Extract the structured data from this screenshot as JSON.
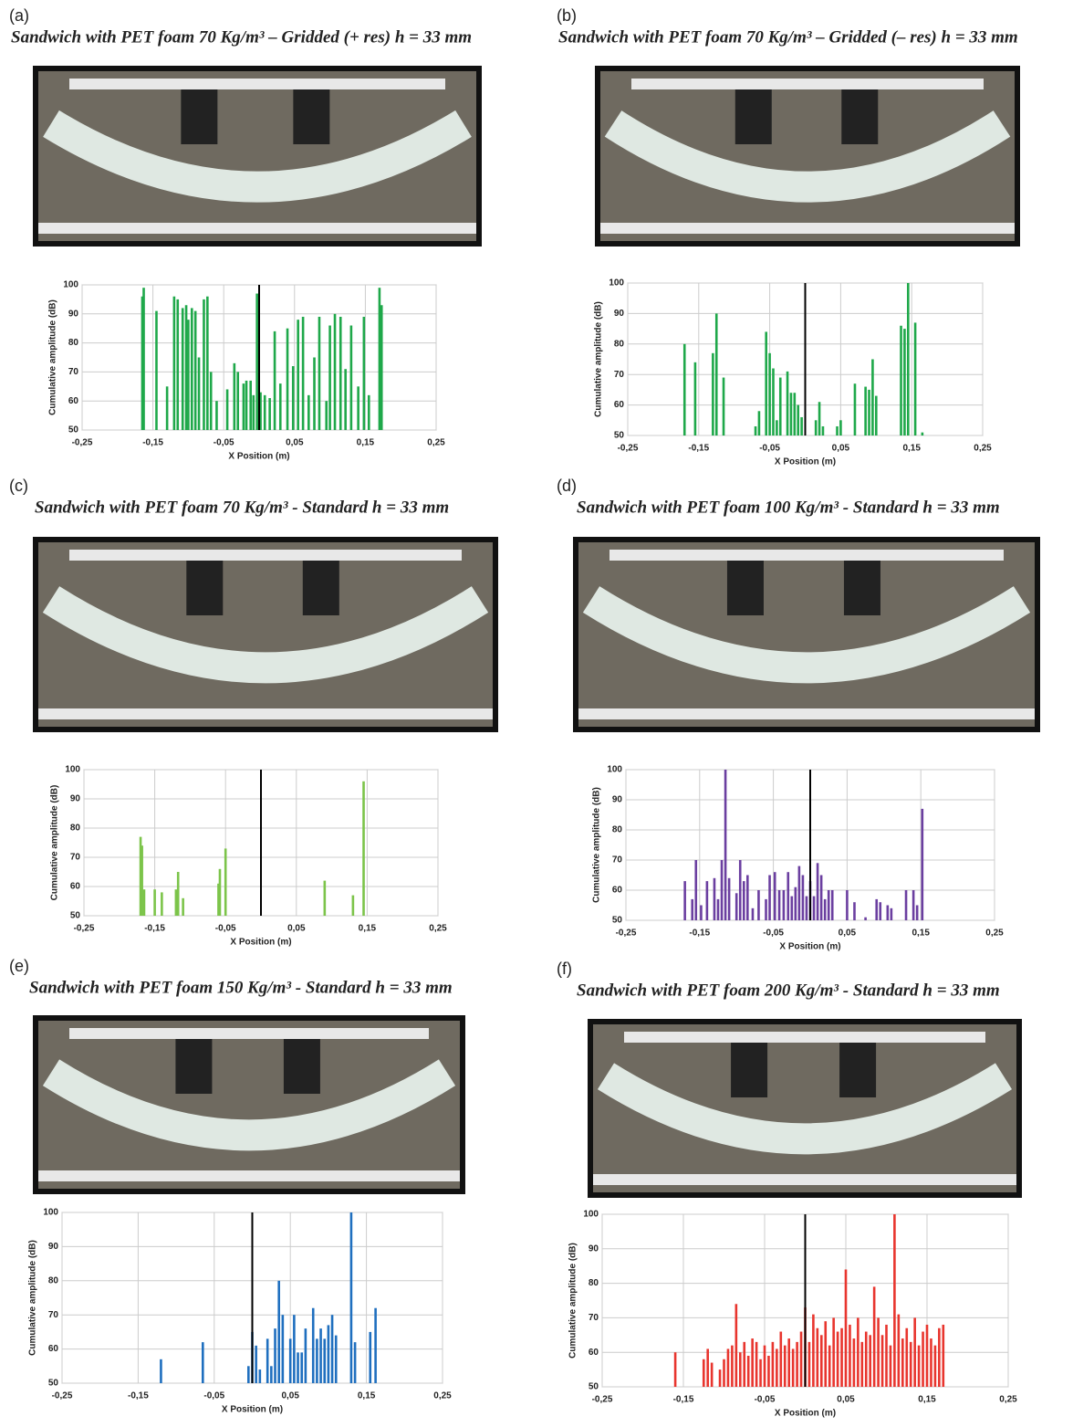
{
  "chart_data": [
    {
      "type": "bar",
      "panel": "(a)",
      "title": "Sandwich with PET foam 70 Kg/m³ – Gridded (+ res) h = 33 mm",
      "xlabel": "X Position (m)",
      "ylabel": "Cumulative amplitude (dB)",
      "color": "#1fa84a",
      "x": [
        -0.165,
        -0.163,
        -0.145,
        -0.13,
        -0.12,
        -0.115,
        -0.108,
        -0.103,
        -0.1,
        -0.095,
        -0.09,
        -0.085,
        -0.078,
        -0.073,
        -0.068,
        -0.06,
        -0.045,
        -0.035,
        -0.03,
        -0.022,
        -0.018,
        -0.012,
        -0.008,
        -0.003,
        0.002,
        0.008,
        0.015,
        0.022,
        0.03,
        0.04,
        0.048,
        0.055,
        0.062,
        0.07,
        0.078,
        0.085,
        0.095,
        0.1,
        0.107,
        0.115,
        0.122,
        0.13,
        0.14,
        0.148,
        0.155,
        0.17,
        0.173
      ],
      "values": [
        96,
        99,
        91,
        65,
        96,
        95,
        92,
        93,
        88,
        92,
        91,
        75,
        95,
        96,
        70,
        60,
        64,
        73,
        70,
        66,
        67,
        67,
        62,
        97,
        63,
        62,
        61,
        84,
        66,
        85,
        72,
        88,
        89,
        62,
        75,
        89,
        60,
        86,
        90,
        89,
        71,
        86,
        65,
        89,
        62,
        99,
        93
      ],
      "xlim": [
        -0.25,
        0.25
      ],
      "ylim": [
        50,
        100
      ],
      "xticks": [
        {
          "value": -0.25,
          "label": "-0,25"
        },
        {
          "value": -0.15,
          "label": "-0,15"
        },
        {
          "value": -0.05,
          "label": "-0,05"
        },
        {
          "value": 0.05,
          "label": "0,05"
        },
        {
          "value": 0.15,
          "label": "0,15"
        },
        {
          "value": 0.25,
          "label": "0,25"
        }
      ],
      "yticks": [
        50,
        60,
        70,
        80,
        90,
        100
      ],
      "grid": true,
      "vline": 0
    },
    {
      "type": "bar",
      "panel": "(b)",
      "title": "Sandwich with PET foam 70 Kg/m³ – Gridded (– res) h = 33 mm",
      "xlabel": "X Position (m)",
      "ylabel": "Cumulative amplitude (dB)",
      "color": "#1fa84a",
      "x": [
        -0.17,
        -0.155,
        -0.13,
        -0.125,
        -0.115,
        -0.07,
        -0.065,
        -0.055,
        -0.05,
        -0.045,
        -0.04,
        -0.035,
        -0.025,
        -0.02,
        -0.015,
        -0.01,
        -0.005,
        0.015,
        0.02,
        0.025,
        0.045,
        0.05,
        0.07,
        0.085,
        0.09,
        0.095,
        0.1,
        0.135,
        0.14,
        0.145,
        0.155,
        0.165
      ],
      "values": [
        80,
        74,
        77,
        90,
        69,
        53,
        58,
        84,
        77,
        72,
        55,
        69,
        71,
        64,
        64,
        60,
        56,
        55,
        61,
        53,
        53,
        55,
        67,
        66,
        65,
        75,
        63,
        86,
        85,
        100,
        87,
        51
      ],
      "xlim": [
        -0.25,
        0.25
      ],
      "ylim": [
        50,
        100
      ],
      "xticks": [
        {
          "value": -0.25,
          "label": "-0,25"
        },
        {
          "value": -0.15,
          "label": "-0,15"
        },
        {
          "value": -0.05,
          "label": "-0,05"
        },
        {
          "value": 0.05,
          "label": "0,05"
        },
        {
          "value": 0.15,
          "label": "0,15"
        },
        {
          "value": 0.25,
          "label": "0,25"
        }
      ],
      "yticks": [
        50,
        60,
        70,
        80,
        90,
        100
      ],
      "grid": true,
      "vline": 0
    },
    {
      "type": "bar",
      "panel": "(c)",
      "title": "Sandwich with PET foam 70 Kg/m³ - Standard h = 33 mm",
      "xlabel": "X Position (m)",
      "ylabel": "Cumulative amplitude (dB)",
      "color": "#7cc44a",
      "x": [
        -0.17,
        -0.168,
        -0.165,
        -0.15,
        -0.14,
        -0.12,
        -0.117,
        -0.11,
        -0.06,
        -0.058,
        -0.05,
        0.09,
        0.13,
        0.145
      ],
      "values": [
        77,
        74,
        59,
        59,
        58,
        59,
        65,
        56,
        61,
        66,
        73,
        62,
        57,
        96
      ],
      "xlim": [
        -0.25,
        0.25
      ],
      "ylim": [
        50,
        100
      ],
      "xticks": [
        {
          "value": -0.25,
          "label": "-0,25"
        },
        {
          "value": -0.15,
          "label": "-0,15"
        },
        {
          "value": -0.05,
          "label": "-0,05"
        },
        {
          "value": 0.05,
          "label": "0,05"
        },
        {
          "value": 0.15,
          "label": "0,15"
        },
        {
          "value": 0.25,
          "label": "0,25"
        }
      ],
      "yticks": [
        50,
        60,
        70,
        80,
        90,
        100
      ],
      "grid": true,
      "vline": 0
    },
    {
      "type": "bar",
      "panel": "(d)",
      "title": "Sandwich with PET foam 100 Kg/m³ - Standard h = 33 mm",
      "xlabel": "X Position (m)",
      "ylabel": "Cumulative amplitude (dB)",
      "color": "#6b3fa0",
      "x": [
        -0.17,
        -0.16,
        -0.155,
        -0.148,
        -0.14,
        -0.13,
        -0.125,
        -0.12,
        -0.115,
        -0.11,
        -0.1,
        -0.095,
        -0.09,
        -0.085,
        -0.078,
        -0.07,
        -0.06,
        -0.055,
        -0.048,
        -0.042,
        -0.036,
        -0.03,
        -0.025,
        -0.02,
        -0.015,
        -0.01,
        -0.005,
        0,
        0.005,
        0.01,
        0.015,
        0.02,
        0.025,
        0.03,
        0.05,
        0.06,
        0.075,
        0.09,
        0.095,
        0.105,
        0.11,
        0.13,
        0.14,
        0.145,
        0.152
      ],
      "values": [
        63,
        57,
        70,
        55,
        63,
        64,
        57,
        70,
        100,
        64,
        59,
        70,
        63,
        65,
        54,
        60,
        57,
        65,
        66,
        60,
        60,
        66,
        58,
        61,
        68,
        65,
        58,
        63,
        58,
        69,
        65,
        57,
        60,
        60,
        60,
        56,
        51,
        57,
        56,
        55,
        54,
        60,
        60,
        55,
        87
      ],
      "xlim": [
        -0.25,
        0.25
      ],
      "ylim": [
        50,
        100
      ],
      "xticks": [
        {
          "value": -0.25,
          "label": "-0,25"
        },
        {
          "value": -0.15,
          "label": "-0,15"
        },
        {
          "value": -0.05,
          "label": "-0,05"
        },
        {
          "value": 0.05,
          "label": "0,05"
        },
        {
          "value": 0.15,
          "label": "0,15"
        },
        {
          "value": 0.25,
          "label": "0,25"
        }
      ],
      "yticks": [
        50,
        60,
        70,
        80,
        90,
        100
      ],
      "grid": true,
      "vline": 0
    },
    {
      "type": "bar",
      "panel": "(e)",
      "title": "Sandwich with PET foam 150 Kg/m³ - Standard h = 33 mm",
      "xlabel": "X Position (m)",
      "ylabel": "Cumulative amplitude (dB)",
      "color": "#1f6fbf",
      "x": [
        -0.12,
        -0.065,
        -0.005,
        0,
        0.005,
        0.01,
        0.02,
        0.025,
        0.03,
        0.035,
        0.04,
        0.05,
        0.055,
        0.06,
        0.065,
        0.07,
        0.08,
        0.085,
        0.09,
        0.095,
        0.1,
        0.105,
        0.11,
        0.13,
        0.135,
        0.155,
        0.162
      ],
      "values": [
        57,
        62,
        55,
        65,
        61,
        54,
        63,
        55,
        66,
        80,
        70,
        63,
        70,
        59,
        59,
        66,
        72,
        63,
        66,
        63,
        67,
        70,
        64,
        100,
        62,
        65,
        72
      ],
      "xlim": [
        -0.25,
        0.25
      ],
      "ylim": [
        50,
        100
      ],
      "xticks": [
        {
          "value": -0.25,
          "label": "-0,25"
        },
        {
          "value": -0.15,
          "label": "-0,15"
        },
        {
          "value": -0.05,
          "label": "-0,05"
        },
        {
          "value": 0.05,
          "label": "0,05"
        },
        {
          "value": 0.15,
          "label": "0,15"
        },
        {
          "value": 0.25,
          "label": "0,25"
        }
      ],
      "yticks": [
        50,
        60,
        70,
        80,
        90,
        100
      ],
      "grid": true,
      "vline": 0
    },
    {
      "type": "bar",
      "panel": "(f)",
      "title": "Sandwich with PET foam 200 Kg/m³ - Standard h = 33 mm",
      "xlabel": "X Position (m)",
      "ylabel": "Cumulative amplitude (dB)",
      "color": "#e8352e",
      "x": [
        -0.16,
        -0.125,
        -0.12,
        -0.115,
        -0.105,
        -0.1,
        -0.095,
        -0.09,
        -0.085,
        -0.08,
        -0.075,
        -0.07,
        -0.065,
        -0.06,
        -0.055,
        -0.05,
        -0.045,
        -0.04,
        -0.035,
        -0.03,
        -0.025,
        -0.02,
        -0.015,
        -0.01,
        -0.005,
        0,
        0.005,
        0.01,
        0.015,
        0.02,
        0.025,
        0.03,
        0.035,
        0.04,
        0.045,
        0.05,
        0.055,
        0.06,
        0.065,
        0.07,
        0.075,
        0.08,
        0.085,
        0.09,
        0.095,
        0.1,
        0.105,
        0.11,
        0.115,
        0.12,
        0.125,
        0.13,
        0.135,
        0.14,
        0.145,
        0.15,
        0.155,
        0.16,
        0.165,
        0.17
      ],
      "values": [
        60,
        58,
        61,
        57,
        55,
        58,
        61,
        62,
        74,
        60,
        63,
        59,
        64,
        63,
        58,
        62,
        59,
        63,
        61,
        66,
        62,
        64,
        61,
        63,
        66,
        73,
        63,
        71,
        67,
        65,
        69,
        62,
        70,
        66,
        67,
        84,
        68,
        64,
        70,
        63,
        66,
        65,
        79,
        70,
        65,
        68,
        62,
        100,
        71,
        64,
        67,
        63,
        70,
        62,
        66,
        68,
        64,
        62,
        67,
        68
      ],
      "xlim": [
        -0.25,
        0.25
      ],
      "ylim": [
        50,
        100
      ],
      "xticks": [
        {
          "value": -0.25,
          "label": "-0,25"
        },
        {
          "value": -0.15,
          "label": "-0,15"
        },
        {
          "value": -0.05,
          "label": "-0,05"
        },
        {
          "value": 0.05,
          "label": "0,05"
        },
        {
          "value": 0.15,
          "label": "0,15"
        },
        {
          "value": 0.25,
          "label": "0,25"
        }
      ],
      "yticks": [
        50,
        60,
        70,
        80,
        90,
        100
      ],
      "grid": true,
      "vline": 0
    }
  ]
}
